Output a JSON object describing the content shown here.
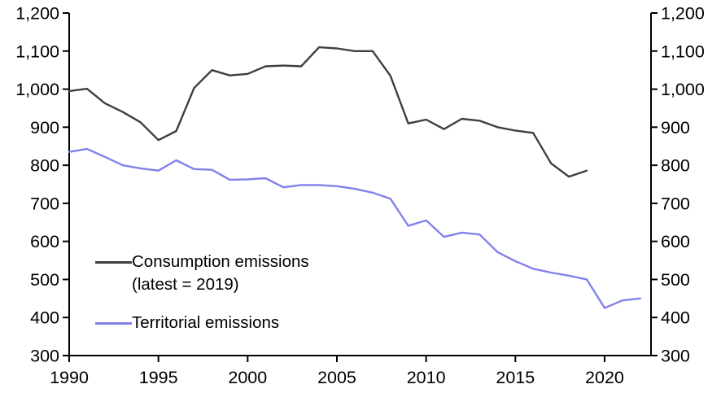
{
  "chart_data": {
    "type": "line",
    "title": "",
    "xlabel": "",
    "ylabel": "",
    "ylim": [
      300,
      1200
    ],
    "xlim": [
      1990,
      2022.6
    ],
    "yticks": [
      300,
      400,
      500,
      600,
      700,
      800,
      900,
      1000,
      1100,
      1200
    ],
    "xticks": [
      1990,
      1995,
      2000,
      2005,
      2010,
      2015,
      2020
    ],
    "grid": false,
    "legend_position": "inside-lower-left",
    "dual_axis": true,
    "axis_color": "#000000",
    "series": [
      {
        "name": "Consumption emissions (latest = 2019)",
        "color": "#3f3f3f",
        "years": [
          1990,
          1991,
          1992,
          1993,
          1994,
          1995,
          1996,
          1997,
          1998,
          1999,
          2000,
          2001,
          2002,
          2003,
          2004,
          2005,
          2006,
          2007,
          2008,
          2009,
          2010,
          2011,
          2012,
          2013,
          2014,
          2015,
          2016,
          2017,
          2018,
          2019
        ],
        "values": [
          995,
          1001,
          963,
          940,
          913,
          866,
          890,
          1003,
          1050,
          1036,
          1040,
          1060,
          1062,
          1060,
          1110,
          1107,
          1100,
          1100,
          1035,
          910,
          920,
          895,
          922,
          917,
          900,
          891,
          885,
          805,
          770,
          786
        ]
      },
      {
        "name": "Territorial emissions",
        "color": "#8181ea",
        "years": [
          1990,
          1991,
          1992,
          1993,
          1994,
          1995,
          1996,
          1997,
          1998,
          1999,
          2000,
          2001,
          2002,
          2003,
          2004,
          2005,
          2006,
          2007,
          2008,
          2009,
          2010,
          2011,
          2012,
          2013,
          2014,
          2015,
          2016,
          2017,
          2018,
          2019,
          2020,
          2021,
          2022
        ],
        "values": [
          835,
          843,
          822,
          800,
          792,
          786,
          813,
          790,
          788,
          762,
          763,
          766,
          742,
          748,
          748,
          745,
          738,
          728,
          712,
          641,
          655,
          612,
          623,
          618,
          572,
          548,
          528,
          518,
          510,
          500,
          425,
          445,
          450
        ]
      }
    ]
  },
  "legend": {
    "consumption_label": "Consumption emissions",
    "consumption_note": "(latest = 2019)",
    "territorial_label": "Territorial emissions"
  }
}
